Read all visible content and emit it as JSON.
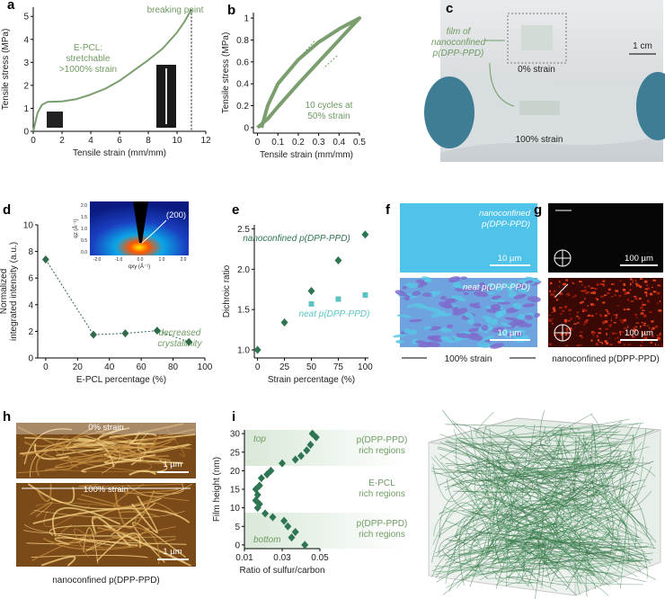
{
  "chart_data": [
    {
      "label": "a",
      "type": "line",
      "color": "#7a9e6e",
      "x": [
        0,
        0.3,
        0.6,
        1,
        2,
        3,
        4,
        5,
        6,
        7,
        8,
        9,
        10,
        10.5,
        11
      ],
      "values": [
        0,
        0.8,
        1.15,
        1.28,
        1.3,
        1.4,
        1.6,
        1.85,
        2.2,
        2.65,
        3.1,
        3.6,
        4.3,
        4.75,
        5.3
      ],
      "xlabel": "Tensile strain (mm/mm)",
      "ylabel": "Tensile stress (MPa)",
      "xlim": [
        0,
        12
      ],
      "ylim": [
        0,
        5.4
      ],
      "xticks": [
        0,
        2,
        4,
        6,
        8,
        10,
        12
      ],
      "yticks": [
        0,
        1,
        2,
        3,
        4,
        5
      ],
      "annotations": [
        "breaking point",
        "E-PCL:",
        "stretchable",
        ">1000% strain"
      ]
    },
    {
      "label": "b",
      "type": "line",
      "color": "#7a9e6e",
      "x": [
        0,
        0.05,
        0.1,
        0.2,
        0.3,
        0.4,
        0.5,
        0.45,
        0.4,
        0.3,
        0.2,
        0.1,
        0.05,
        0.02
      ],
      "values": [
        0,
        0.08,
        0.19,
        0.4,
        0.6,
        0.8,
        1.0,
        0.95,
        0.9,
        0.78,
        0.62,
        0.4,
        0.2,
        0
      ],
      "xlabel": "Tensile strain (mm/mm)",
      "ylabel": "Tensile stress (MPa)",
      "xlim": [
        -0.02,
        0.5
      ],
      "ylim": [
        -0.05,
        1.05
      ],
      "xticks": [
        0,
        0.1,
        0.2,
        0.3,
        0.4,
        0.5
      ],
      "yticks": [
        0,
        0.2,
        0.4,
        0.6,
        0.8,
        1
      ],
      "annotations": [
        "10 cycles at",
        "50% strain"
      ]
    },
    {
      "label": "d",
      "type": "line",
      "linestyle": "dashed",
      "marker": "diamond",
      "color": "#2f6b4a",
      "x": [
        0,
        30,
        50,
        70,
        90
      ],
      "values": [
        7.4,
        1.75,
        1.85,
        2.05,
        1.2
      ],
      "xlabel": "E-PCL percentage (%)",
      "ylabel": [
        "Normalized",
        "integrated intensity (a.u.)"
      ],
      "xlim": [
        -5,
        100
      ],
      "ylim": [
        0,
        10
      ],
      "xticks": [
        0,
        20,
        40,
        60,
        80,
        100
      ],
      "yticks": [
        0,
        2,
        4,
        6,
        8,
        10
      ],
      "annotations": [
        "decreased",
        "crystallinity"
      ],
      "inset": {
        "peak": "(200)",
        "ylabel": "qz (Å⁻¹)",
        "xlabel": "qxy (Å⁻¹)",
        "yticks": [
          "0.0",
          "0.5",
          "1.0",
          "1.5",
          "2.0"
        ],
        "xticks": [
          "-2.0",
          "-1.0",
          "0.0",
          "1.0",
          "2.0"
        ]
      }
    },
    {
      "label": "e",
      "type": "scatter",
      "series": [
        {
          "name": "nanoconfined p(DPP-PPD)",
          "color": "#2e7552",
          "marker": "diamond",
          "x": [
            0,
            25,
            50,
            75,
            100
          ],
          "values": [
            1.0,
            1.34,
            1.73,
            2.11,
            2.43
          ]
        },
        {
          "name": "neat p(DPP-PPD)",
          "color": "#5cc3c3",
          "marker": "square",
          "x": [
            50,
            75,
            100
          ],
          "values": [
            1.57,
            1.63,
            1.68
          ]
        }
      ],
      "xlabel": "Strain percentage (%)",
      "ylabel": "Dichroic ratio",
      "xlim": [
        -3,
        103
      ],
      "ylim": [
        0.9,
        2.55
      ],
      "xticks": [
        0,
        25,
        50,
        75,
        100
      ],
      "yticks": [
        {
          "value": 1,
          "label": "1.0"
        },
        1.5,
        {
          "value": 2,
          "label": "2.0"
        },
        2.5
      ]
    },
    {
      "label": "i",
      "type": "scatter",
      "marker": "diamond",
      "color": "#2e7552",
      "x": [
        0.046,
        0.048,
        0.045,
        0.043,
        0.04,
        0.037,
        0.03,
        0.024,
        0.022,
        0.019,
        0.018,
        0.016,
        0.017,
        0.016,
        0.018,
        0.017,
        0.021,
        0.025,
        0.031,
        0.033,
        0.037,
        0.035,
        0.042
      ],
      "values": [
        30,
        29,
        27,
        25.5,
        24,
        23,
        22,
        20,
        19,
        18,
        16,
        15,
        13.5,
        12,
        11,
        10,
        8.5,
        7.5,
        6.5,
        5,
        3.5,
        2,
        0
      ],
      "xlabel": "Ratio of sulfur/carbon",
      "ylabel": "Film height (nm)",
      "xlim": [
        0.01,
        0.05
      ],
      "ylim": [
        -1,
        31
      ],
      "xticks": [
        0.01,
        0.03,
        0.05
      ],
      "yticks": [
        0,
        5,
        10,
        15,
        20,
        25,
        30
      ],
      "annotations": [
        "top",
        "bottom",
        "p(DPP-PPD)",
        "rich regions",
        "E-PCL",
        "rich regions",
        "p(DPP-PPD)",
        "rich regions"
      ]
    }
  ],
  "photos": {
    "c": {
      "label": "c",
      "film": [
        "film of",
        "nanoconfined",
        "p(DPP-PPD)"
      ],
      "strain0": "0% strain",
      "strain100": "100% strain",
      "scale": "1 cm"
    },
    "f": {
      "label": "f",
      "top": [
        "nanoconfined",
        "p(DPP-PPD)"
      ],
      "bottom": "neat p(DPP-PPD)",
      "scale": [
        "10 µm",
        "10 µm"
      ],
      "caption": "100% strain"
    },
    "g": {
      "label": "g",
      "scale": [
        "100 µm",
        "100 µm"
      ],
      "caption": "nanoconfined p(DPP-PPD)"
    },
    "h": {
      "label": "h",
      "top": "0% strain",
      "bottom": "100% strain",
      "scale": [
        "1 µm",
        "1 µm"
      ],
      "caption": "nanoconfined p(DPP-PPD)"
    }
  }
}
